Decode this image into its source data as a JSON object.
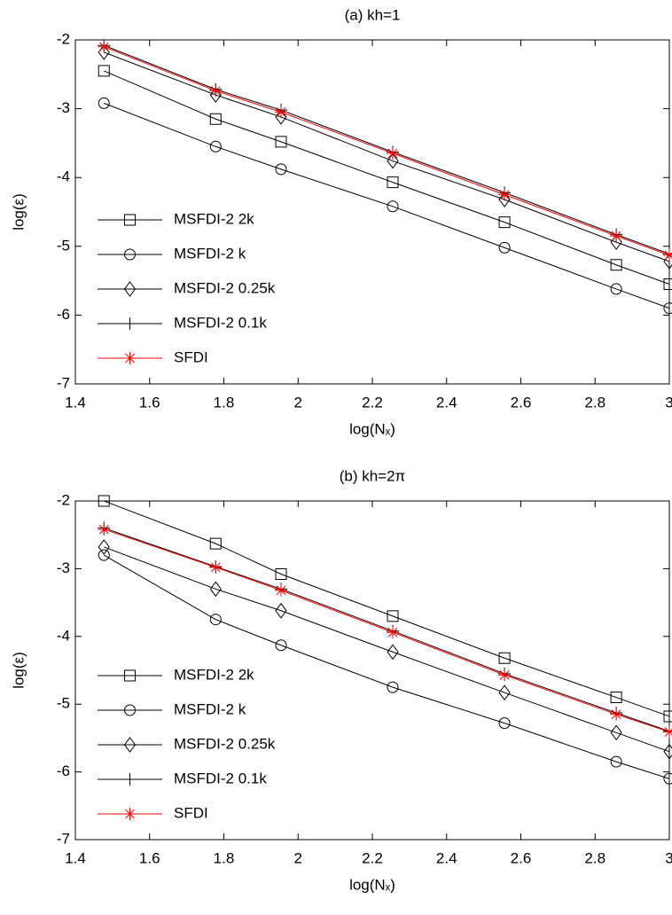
{
  "chart_data": [
    {
      "type": "line",
      "title": "(a) kh=1",
      "x_label": "log(Nₓ)",
      "y_label": "log(ε)",
      "x": [
        1.477,
        1.778,
        1.954,
        2.255,
        2.556,
        2.857,
        3
      ],
      "xlim": [
        1.4,
        3
      ],
      "xticks": [
        1.4,
        1.6,
        1.8,
        2,
        2.2,
        2.4,
        2.6,
        2.8,
        3
      ],
      "ylim": [
        -7,
        -2
      ],
      "yticks": [
        -7,
        -6,
        -5,
        -4,
        -3,
        -2
      ],
      "legend": "lower left",
      "series": [
        {
          "name": "MSFDI-2 2k",
          "color": "#000000",
          "marker": "square",
          "values": [
            -2.45,
            -3.15,
            -3.48,
            -4.07,
            -4.65,
            -5.27,
            -5.55
          ]
        },
        {
          "name": "MSFDI-2 k",
          "color": "#000000",
          "marker": "circle",
          "values": [
            -2.92,
            -3.55,
            -3.88,
            -4.42,
            -5.02,
            -5.62,
            -5.9
          ]
        },
        {
          "name": "MSFDI-2 0.25k",
          "color": "#000000",
          "marker": "diamond",
          "values": [
            -2.18,
            -2.8,
            -3.12,
            -3.76,
            -4.32,
            -4.94,
            -5.22
          ]
        },
        {
          "name": "MSFDI-2 0.1k",
          "color": "#000000",
          "marker": "plus",
          "values": [
            -2.08,
            -2.72,
            -3.02,
            -3.63,
            -4.22,
            -4.83,
            -5.11
          ]
        },
        {
          "name": "SFDI",
          "color": "#ff0000",
          "marker": "star",
          "values": [
            -2.1,
            -2.74,
            -3.05,
            -3.65,
            -4.25,
            -4.85,
            -5.13
          ]
        }
      ]
    },
    {
      "type": "line",
      "title": "(b) kh=2π",
      "x_label": "log(Nₓ)",
      "y_label": "log(ε)",
      "x": [
        1.477,
        1.778,
        1.954,
        2.255,
        2.556,
        2.857,
        3
      ],
      "xlim": [
        1.4,
        3
      ],
      "xticks": [
        1.4,
        1.6,
        1.8,
        2,
        2.2,
        2.4,
        2.6,
        2.8,
        3
      ],
      "ylim": [
        -7,
        -2
      ],
      "yticks": [
        -7,
        -6,
        -5,
        -4,
        -3,
        -2
      ],
      "legend": "lower left",
      "series": [
        {
          "name": "MSFDI-2 2k",
          "color": "#000000",
          "marker": "square",
          "values": [
            -2.0,
            -2.63,
            -3.08,
            -3.7,
            -4.32,
            -4.9,
            -5.18
          ]
        },
        {
          "name": "MSFDI-2 k",
          "color": "#000000",
          "marker": "circle",
          "values": [
            -2.8,
            -3.75,
            -4.13,
            -4.75,
            -5.28,
            -5.85,
            -6.1
          ]
        },
        {
          "name": "MSFDI-2 0.25k",
          "color": "#000000",
          "marker": "diamond",
          "values": [
            -2.68,
            -3.3,
            -3.62,
            -4.23,
            -4.83,
            -5.42,
            -5.7
          ]
        },
        {
          "name": "MSFDI-2 0.1k",
          "color": "#000000",
          "marker": "plus",
          "values": [
            -2.4,
            -2.97,
            -3.3,
            -3.92,
            -4.55,
            -5.13,
            -5.4
          ]
        },
        {
          "name": "SFDI",
          "color": "#ff0000",
          "marker": "star",
          "values": [
            -2.42,
            -2.98,
            -3.32,
            -3.94,
            -4.57,
            -5.15,
            -5.41
          ]
        }
      ]
    }
  ]
}
